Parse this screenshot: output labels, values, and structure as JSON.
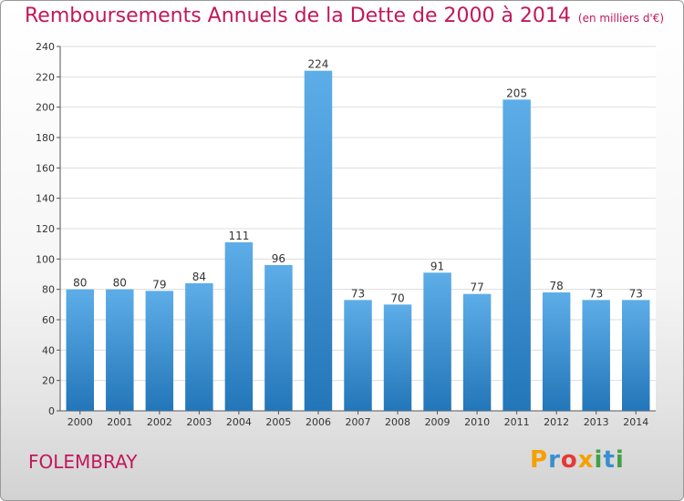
{
  "title": "Remboursements Annuels de la Dette de 2000 à 2014",
  "subtitle": "(en milliers d'€)",
  "commune": "FOLEMBRAY",
  "brand": {
    "text": "Proxiti",
    "letter_colors": [
      "#f5a000",
      "#3a8fd1",
      "#e53935",
      "#f5a000",
      "#43a047",
      "#3a8fd1",
      "#43a047"
    ]
  },
  "colors": {
    "title": "#c2185b",
    "bar_top": "#5dade8",
    "bar_bottom": "#2376b8"
  },
  "chart_data": {
    "type": "bar",
    "title": "Remboursements Annuels de la Dette de 2000 à 2014",
    "categories": [
      "2000",
      "2001",
      "2002",
      "2003",
      "2004",
      "2005",
      "2006",
      "2007",
      "2008",
      "2009",
      "2010",
      "2011",
      "2012",
      "2013",
      "2014"
    ],
    "values": [
      80,
      80,
      79,
      84,
      111,
      96,
      224,
      73,
      70,
      91,
      77,
      205,
      78,
      73,
      73
    ],
    "ylim": [
      0,
      240
    ],
    "yticks": [
      0,
      20,
      40,
      60,
      80,
      100,
      120,
      140,
      160,
      180,
      200,
      220,
      240
    ],
    "grid": true
  }
}
